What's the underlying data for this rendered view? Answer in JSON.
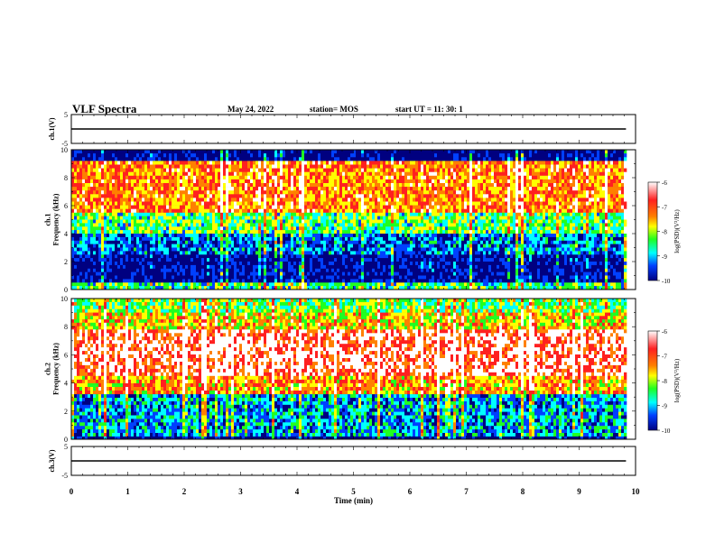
{
  "header": {
    "title": "VLF Spectra",
    "date": "May 24, 2022",
    "station": "station= MOS",
    "start": "start  UT =   11: 30: 1"
  },
  "colors": {
    "colormap": [
      "#ffffff",
      "#ff2020",
      "#ff8000",
      "#ffff00",
      "#20ff20",
      "#00ffff",
      "#0040ff",
      "#000080"
    ],
    "background": "#000050"
  },
  "chart_data": [
    {
      "type": "line",
      "name": "ch1-waveform",
      "ylabel": "ch.1(V)",
      "ylim": [
        -5,
        5
      ],
      "yticks": [
        "5",
        "-5"
      ],
      "x": [
        0,
        9.83
      ],
      "values": [
        0,
        0
      ],
      "xlim": [
        0,
        10
      ]
    },
    {
      "type": "heatmap",
      "name": "ch1-spectrogram",
      "ylabel": "ch.1\nFrequency (kHz)",
      "ylim": [
        0,
        10
      ],
      "yticks": [
        "0",
        "2",
        "4",
        "6",
        "8",
        "10"
      ],
      "xlim": [
        0,
        10
      ],
      "x_extent": [
        0,
        9.83
      ],
      "colorbar": {
        "label": "log(PSD)(V²/Hz)",
        "ticks": [
          "-6",
          "-7",
          "-8",
          "-9",
          "-10"
        ],
        "range": [
          -10,
          -6
        ]
      },
      "bands": [
        {
          "f": [
            9.2,
            10
          ],
          "level": -10
        },
        {
          "f": [
            5.5,
            9.2
          ],
          "level": -7.2
        },
        {
          "f": [
            4.0,
            5.5
          ],
          "level": -8.3
        },
        {
          "f": [
            2.5,
            4.0
          ],
          "level": -9.2
        },
        {
          "f": [
            0.5,
            2.5
          ],
          "level": -9.8
        },
        {
          "f": [
            0,
            0.5
          ],
          "level": -8.5
        }
      ]
    },
    {
      "type": "heatmap",
      "name": "ch2-spectrogram",
      "ylabel": "ch.2\nFrequency (kHz)",
      "ylim": [
        0,
        10
      ],
      "yticks": [
        "0",
        "2",
        "4",
        "6",
        "8",
        "10"
      ],
      "xlim": [
        0,
        10
      ],
      "x_extent": [
        0,
        9.83
      ],
      "colorbar": {
        "label": "log(PSD)(V²/Hz)",
        "ticks": [
          "-6",
          "-7",
          "-8",
          "-9",
          "-10"
        ],
        "range": [
          -10,
          -6
        ]
      },
      "bands": [
        {
          "f": [
            9.0,
            10
          ],
          "level": -8.2
        },
        {
          "f": [
            7.8,
            9.0
          ],
          "level": -7.6
        },
        {
          "f": [
            4.5,
            7.8
          ],
          "level": -6.6
        },
        {
          "f": [
            3.2,
            4.5
          ],
          "level": -7.4
        },
        {
          "f": [
            0.2,
            3.2
          ],
          "level": -9.0
        },
        {
          "f": [
            0,
            0.2
          ],
          "level": -10
        }
      ]
    },
    {
      "type": "line",
      "name": "ch3-waveform",
      "ylabel": "ch.3(V)",
      "ylim": [
        -5,
        5
      ],
      "yticks": [
        "5",
        "-5"
      ],
      "x": [
        0,
        9.83
      ],
      "values": [
        0,
        0
      ],
      "xlim": [
        0,
        10
      ],
      "xlabel": "Time (min)",
      "xticks": [
        "0",
        "1",
        "2",
        "3",
        "4",
        "5",
        "6",
        "7",
        "8",
        "9",
        "10"
      ]
    }
  ]
}
